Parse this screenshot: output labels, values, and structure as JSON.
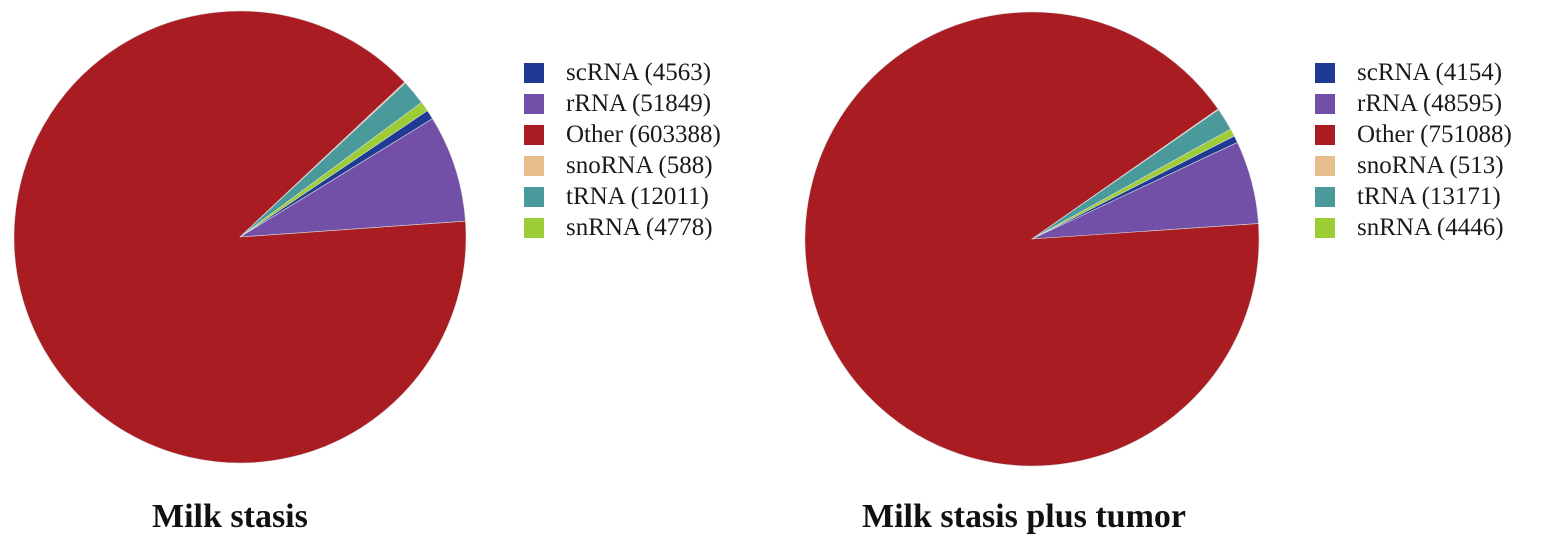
{
  "chart_data": [
    {
      "type": "pie",
      "title": "Milk stasis",
      "start_angle_deg": -34,
      "legend_position": "right",
      "slices": [
        {
          "label": "scRNA (4563)",
          "name": "scRNA",
          "value": 4563,
          "color": "#1f3a93"
        },
        {
          "label": "rRNA (51849)",
          "name": "rRNA",
          "value": 51849,
          "color": "#7350a8"
        },
        {
          "label": "Other (603388)",
          "name": "Other",
          "value": 603388,
          "color": "#a81c22"
        },
        {
          "label": "snoRNA (588)",
          "name": "snoRNA",
          "value": 588,
          "color": "#e8bd8c"
        },
        {
          "label": "tRNA (12011)",
          "name": "tRNA",
          "value": 12011,
          "color": "#4a9a9c"
        },
        {
          "label": "snRNA (4778)",
          "name": "snRNA",
          "value": 4778,
          "color": "#9ccd34"
        }
      ]
    },
    {
      "type": "pie",
      "title": "Milk stasis plus tumor",
      "start_angle_deg": -27,
      "legend_position": "right",
      "slices": [
        {
          "label": "scRNA (4154)",
          "name": "scRNA",
          "value": 4154,
          "color": "#1f3a93"
        },
        {
          "label": "rRNA (48595)",
          "name": "rRNA",
          "value": 48595,
          "color": "#7350a8"
        },
        {
          "label": "Other (751088)",
          "name": "Other",
          "value": 751088,
          "color": "#a81c22"
        },
        {
          "label": "snoRNA (513)",
          "name": "snoRNA",
          "value": 513,
          "color": "#e8bd8c"
        },
        {
          "label": "tRNA (13171)",
          "name": "tRNA",
          "value": 13171,
          "color": "#4a9a9c"
        },
        {
          "label": "snRNA (4446)",
          "name": "snRNA",
          "value": 4446,
          "color": "#9ccd34"
        }
      ]
    }
  ]
}
